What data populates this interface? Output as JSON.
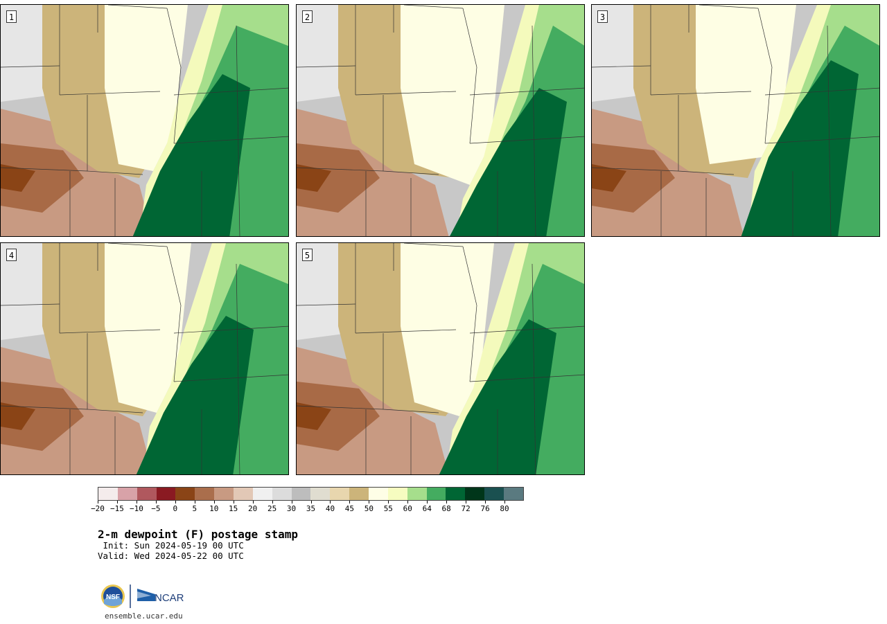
{
  "panels": [
    {
      "label": "1"
    },
    {
      "label": "2"
    },
    {
      "label": "3"
    },
    {
      "label": "4"
    },
    {
      "label": "5"
    }
  ],
  "colorbar": {
    "colors": [
      "#f4ecec",
      "#d8a2a8",
      "#b0585e",
      "#8a1a22",
      "#8a4416",
      "#aa6e4c",
      "#c89a82",
      "#e2c8b6",
      "#f0f0f0",
      "#dcdcdc",
      "#bdbdbd",
      "#e0ddd0",
      "#e8d6ae",
      "#ccb47a",
      "#fefee6",
      "#f6fcc0",
      "#a6de8c",
      "#44ac60",
      "#006634",
      "#00361a",
      "#1a5050",
      "#5a7a80"
    ],
    "tick_labels": [
      "-20",
      "-15",
      "-10",
      "-5",
      "0",
      "5",
      "10",
      "15",
      "20",
      "25",
      "30",
      "35",
      "40",
      "45",
      "50",
      "55",
      "60",
      "64",
      "68",
      "72",
      "76",
      "80"
    ]
  },
  "title": "2-m dewpoint (F) postage stamp",
  "init": " Init: Sun 2024-05-19 00 UTC",
  "valid": "Valid: Wed 2024-05-22 00 UTC",
  "logo_nsf": "NSF",
  "logo_ncar": "NCAR",
  "site": "ensemble.ucar.edu"
}
